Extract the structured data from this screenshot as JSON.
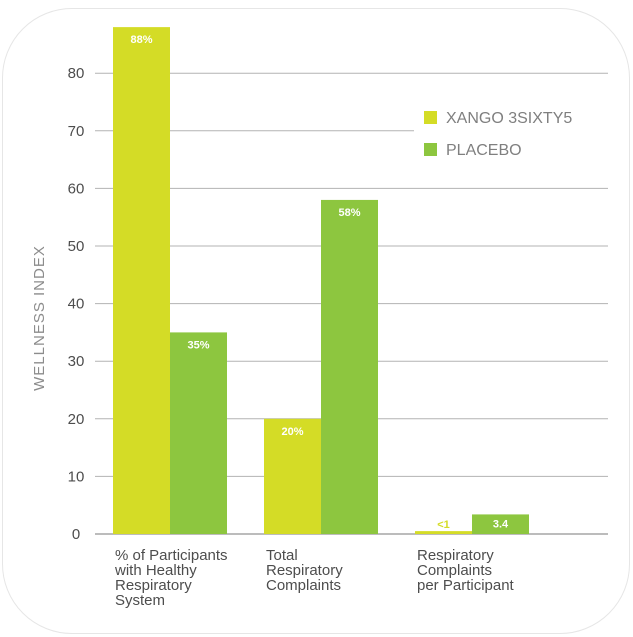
{
  "chart_data": {
    "type": "bar",
    "ylabel": "WELLNESS INDEX",
    "ylim": [
      0,
      90
    ],
    "yticks": [
      0,
      10,
      20,
      30,
      40,
      50,
      60,
      70,
      80
    ],
    "grid": true,
    "legend_position": "top-right",
    "categories": [
      [
        "% of Participants",
        "with Healthy",
        "Respiratory",
        "System"
      ],
      [
        "Total",
        "Respiratory",
        "Complaints"
      ],
      [
        "Respiratory",
        "Complaints",
        "per Participant"
      ]
    ],
    "series": [
      {
        "name": "XANGO 3SIXTY5",
        "color": "#d4dc26",
        "values": [
          88,
          20,
          0.5
        ],
        "labels": [
          "88%",
          "20%",
          "<1"
        ]
      },
      {
        "name": "PLACEBO",
        "color": "#8dc63f",
        "values": [
          35,
          58,
          3.4
        ],
        "labels": [
          "35%",
          "58%",
          "3.4"
        ]
      }
    ]
  }
}
